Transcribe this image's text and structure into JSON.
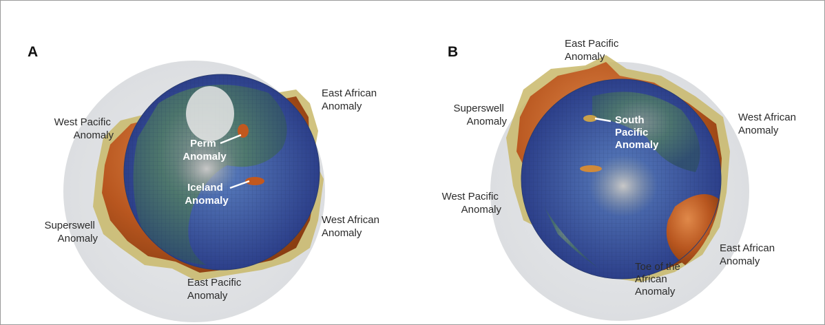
{
  "panels": [
    {
      "label": "A",
      "annotations": [
        {
          "lines": [
            "East African",
            "Anomaly"
          ]
        },
        {
          "lines": [
            "West Pacific",
            "Anomaly"
          ]
        },
        {
          "lines": [
            "Perm",
            "Anomaly"
          ]
        },
        {
          "lines": [
            "Iceland",
            "Anomaly"
          ]
        },
        {
          "lines": [
            "Superswell",
            "Anomaly"
          ]
        },
        {
          "lines": [
            "West African",
            "Anomaly"
          ]
        },
        {
          "lines": [
            "East Pacific",
            "Anomaly"
          ]
        }
      ]
    },
    {
      "label": "B",
      "annotations": [
        {
          "lines": [
            "East Pacific",
            "Anomaly"
          ]
        },
        {
          "lines": [
            "Superswell",
            "Anomaly"
          ]
        },
        {
          "lines": [
            "South",
            "Pacific",
            "Anomaly"
          ]
        },
        {
          "lines": [
            "West African",
            "Anomaly"
          ]
        },
        {
          "lines": [
            "West Pacific",
            "Anomaly"
          ]
        },
        {
          "lines": [
            "East African",
            "Anomaly"
          ]
        },
        {
          "lines": [
            "Toe of the",
            "African",
            "Anomaly"
          ]
        }
      ]
    }
  ]
}
